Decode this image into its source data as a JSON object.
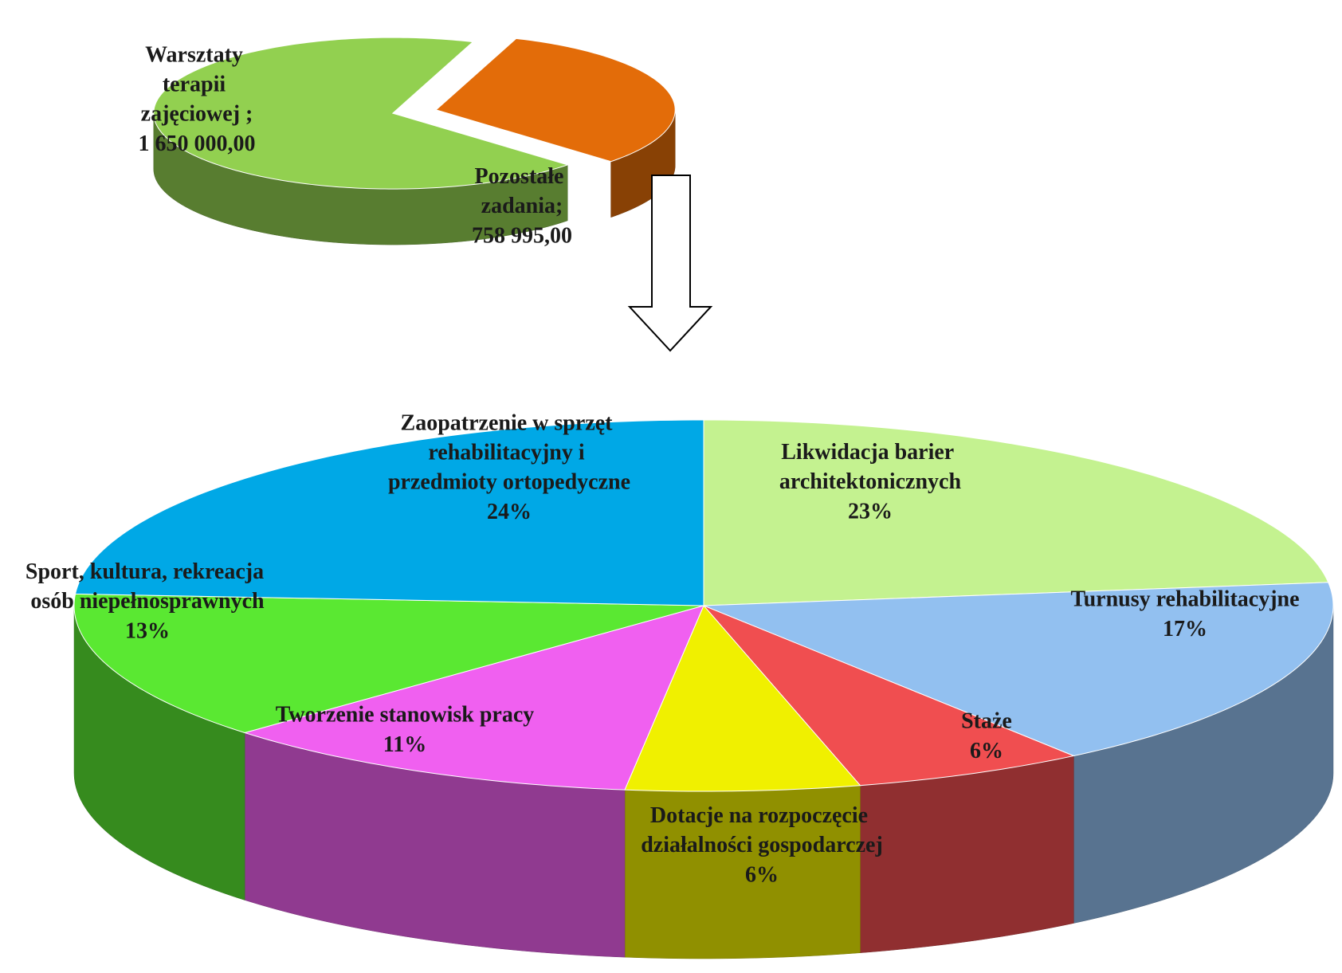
{
  "chart_data": [
    {
      "type": "pie",
      "exploded": true,
      "categories": [
        "Warsztaty terapii zajęciowej ;",
        "Pozostałe zadania;"
      ],
      "values": [
        1650000,
        758995
      ],
      "value_labels": [
        "1 650 000,00",
        "758 995,00"
      ],
      "colors": [
        "#92d050",
        "#e36c09"
      ]
    },
    {
      "type": "pie",
      "exploded": false,
      "categories": [
        "Likwidacja barier architektonicznych",
        "Turnusy rehabilitacyjne",
        "Staże",
        "Dotacje na rozpoczęcie działalności gospodarczej",
        "Tworzenie stanowisk pracy",
        "Sport, kultura, rekreacja osób niepełnosprawnych",
        "Zaopatrzenie w sprzęt rehabilitacyjny i przedmioty ortopedyczne"
      ],
      "values": [
        23,
        17,
        6,
        6,
        11,
        13,
        24
      ],
      "value_labels": [
        "23%",
        "17%",
        "6%",
        "6%",
        "11%",
        "13%",
        "24%"
      ],
      "colors": [
        "#c4f290",
        "#92c0f0",
        "#f04e50",
        "#f0f000",
        "#f060f0",
        "#5ae832",
        "#00a8e6"
      ]
    }
  ]
}
